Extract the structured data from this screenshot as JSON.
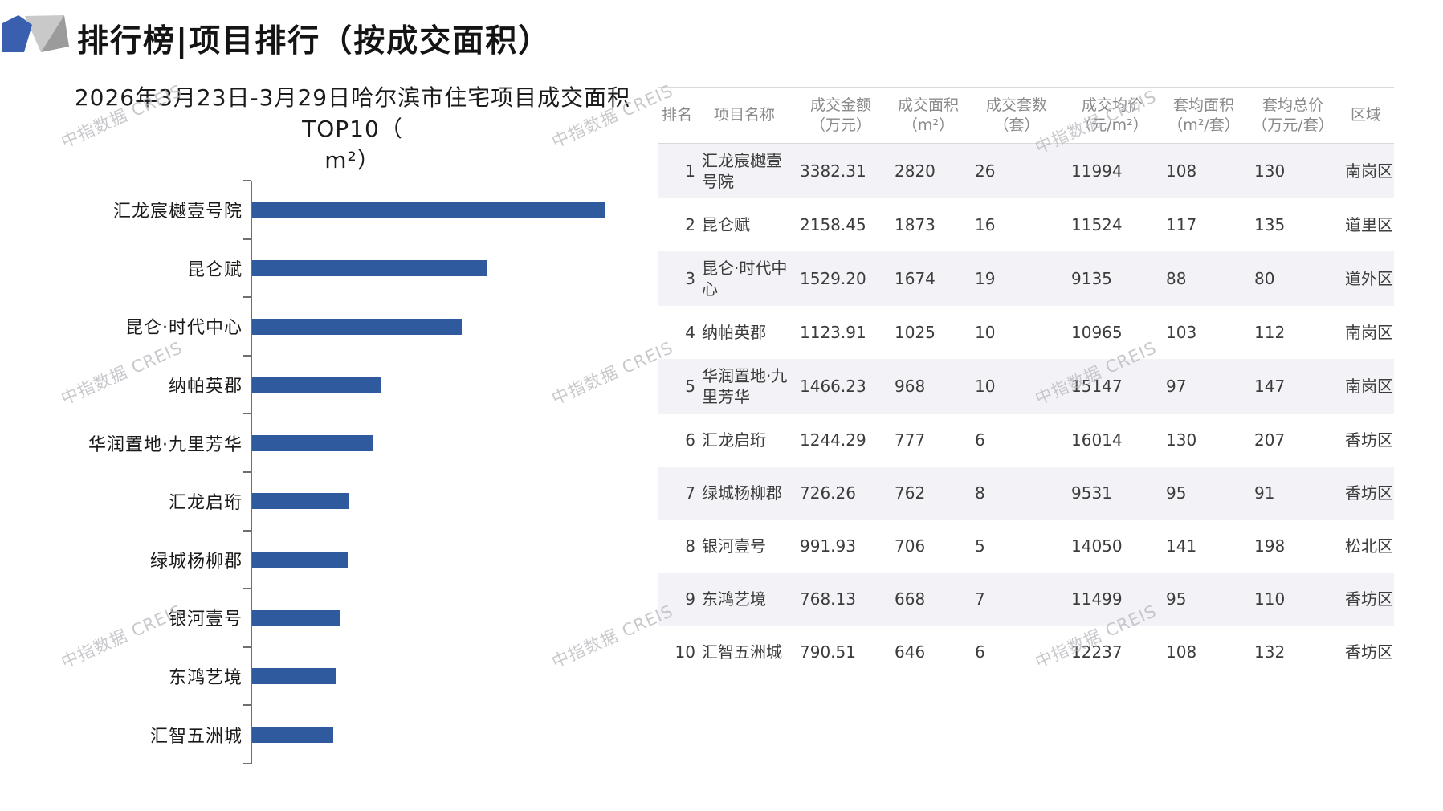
{
  "page": {
    "title": "排行榜|项目排行（按成交面积）",
    "watermark_text": "中指数据 CREIS"
  },
  "logo": {
    "blue": "#3a5fae",
    "light_gray": "#c9c9c9",
    "dark_gray": "#9b9b9b"
  },
  "chart_data": {
    "type": "bar",
    "orientation": "horizontal",
    "title": "2026年3月23日-3月29日哈尔滨市住宅项目成交面积TOP10（m²）",
    "title_lines": [
      "2026年3月23日-3月29日哈尔滨市住宅项目成交面积TOP10（",
      "m²）"
    ],
    "xlabel": "",
    "ylabel": "",
    "unit": "m²",
    "categories": [
      "汇龙宸樾壹号院",
      "昆仑赋",
      "昆仑·时代中心",
      "纳帕英郡",
      "华润置地·九里芳华",
      "汇龙启珩",
      "绿城杨柳郡",
      "银河壹号",
      "东鸿艺境",
      "汇智五洲城"
    ],
    "values": [
      2820,
      1873,
      1674,
      1025,
      968,
      777,
      762,
      706,
      668,
      646
    ],
    "xlim": [
      0,
      2900
    ],
    "grid": false,
    "legend": false,
    "bar_color": "#2f5b9e",
    "axis_color": "#6f6f6f"
  },
  "table": {
    "headers": [
      {
        "label": "排名",
        "unit": ""
      },
      {
        "label": "项目名称",
        "unit": ""
      },
      {
        "label": "成交金额",
        "unit": "（万元）"
      },
      {
        "label": "成交面积",
        "unit": "（m²）"
      },
      {
        "label": "成交套数",
        "unit": "（套）"
      },
      {
        "label": "成交均价",
        "unit": "（元/m²）"
      },
      {
        "label": "套均面积",
        "unit": "（m²/套）"
      },
      {
        "label": "套均总价",
        "unit": "（万元/套）"
      },
      {
        "label": "区域",
        "unit": ""
      }
    ],
    "rows": [
      [
        "1",
        "汇龙宸樾壹号院",
        "3382.31",
        "2820",
        "26",
        "11994",
        "108",
        "130",
        "南岗区"
      ],
      [
        "2",
        "昆仑赋",
        "2158.45",
        "1873",
        "16",
        "11524",
        "117",
        "135",
        "道里区"
      ],
      [
        "3",
        "昆仑·时代中心",
        "1529.20",
        "1674",
        "19",
        "9135",
        "88",
        "80",
        "道外区"
      ],
      [
        "4",
        "纳帕英郡",
        "1123.91",
        "1025",
        "10",
        "10965",
        "103",
        "112",
        "南岗区"
      ],
      [
        "5",
        "华润置地·九里芳华",
        "1466.23",
        "968",
        "10",
        "15147",
        "97",
        "147",
        "南岗区"
      ],
      [
        "6",
        "汇龙启珩",
        "1244.29",
        "777",
        "6",
        "16014",
        "130",
        "207",
        "香坊区"
      ],
      [
        "7",
        "绿城杨柳郡",
        "726.26",
        "762",
        "8",
        "9531",
        "95",
        "91",
        "香坊区"
      ],
      [
        "8",
        "银河壹号",
        "991.93",
        "706",
        "5",
        "14050",
        "141",
        "198",
        "松北区"
      ],
      [
        "9",
        "东鸿艺境",
        "768.13",
        "668",
        "7",
        "11499",
        "95",
        "110",
        "香坊区"
      ],
      [
        "10",
        "汇智五洲城",
        "790.51",
        "646",
        "6",
        "12237",
        "108",
        "132",
        "香坊区"
      ]
    ]
  }
}
